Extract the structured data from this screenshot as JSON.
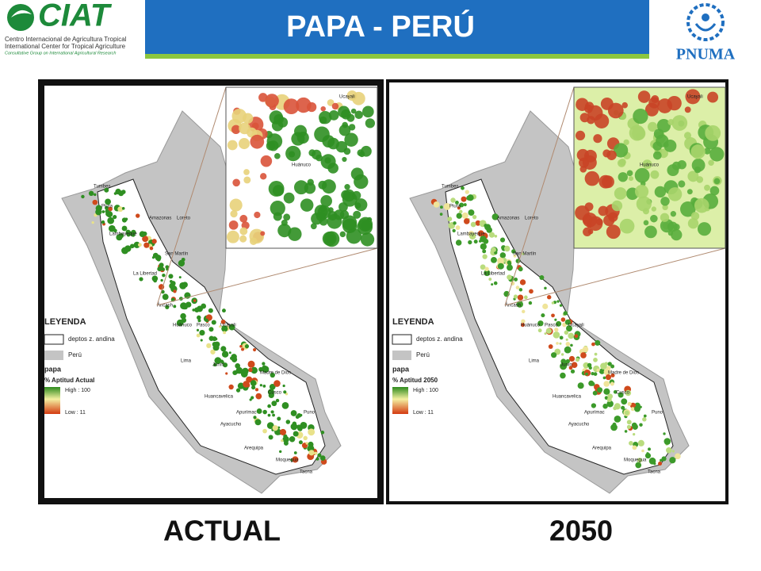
{
  "header": {
    "title": "PAPA - PERÚ",
    "left_logo": {
      "name": "CIAT",
      "lines": [
        "Centro Internacional de Agricultura Tropical",
        "International Center for Tropical Agriculture",
        "Consultative Group on International Agricultural Research"
      ]
    },
    "right_logo": {
      "name": "PNUMA"
    }
  },
  "maps": [
    {
      "caption": "ACTUAL",
      "legend": {
        "title": "LEYENDA",
        "items": [
          "deptos z. andina",
          "Perú"
        ],
        "layer": "papa",
        "field": "% Aptitud Actual",
        "high": "High : 100",
        "low": "Low : 11"
      },
      "labels": [
        "Tumbes",
        "Piura",
        "Lambayeque",
        "Loreto",
        "Amazonas",
        "San Martín",
        "La Libertad",
        "Áncash",
        "Huánuco",
        "Ucayali",
        "Pasco",
        "Lima",
        "Junín",
        "Huancavelica",
        "Madre de Dios",
        "Cusco",
        "Apurímac",
        "Ayacucho",
        "Arequipa",
        "Puno",
        "Moquegua",
        "Tacna"
      ],
      "inset_labels": [
        "Ucayali",
        "Huánuco"
      ]
    },
    {
      "caption": "2050",
      "legend": {
        "title": "LEYENDA",
        "items": [
          "deptos z. andina",
          "Perú"
        ],
        "layer": "papa",
        "field": "% Aptitud 2050",
        "high": "High : 100",
        "low": "Low : 11"
      },
      "labels": [
        "Tumbes",
        "Piura",
        "Lambayeque",
        "Loreto",
        "Amazonas",
        "San Martín",
        "La Libertad",
        "Áncash",
        "Huánuco",
        "Ucayali",
        "Pasco",
        "Lima",
        "Junín",
        "Huancavelica",
        "Madre de Dios",
        "Cusco",
        "Apurímac",
        "Ayacucho",
        "Arequipa",
        "Puno",
        "Moquegua",
        "Tacna"
      ],
      "inset_labels": [
        "Ucayali",
        "Huánuco"
      ]
    }
  ]
}
